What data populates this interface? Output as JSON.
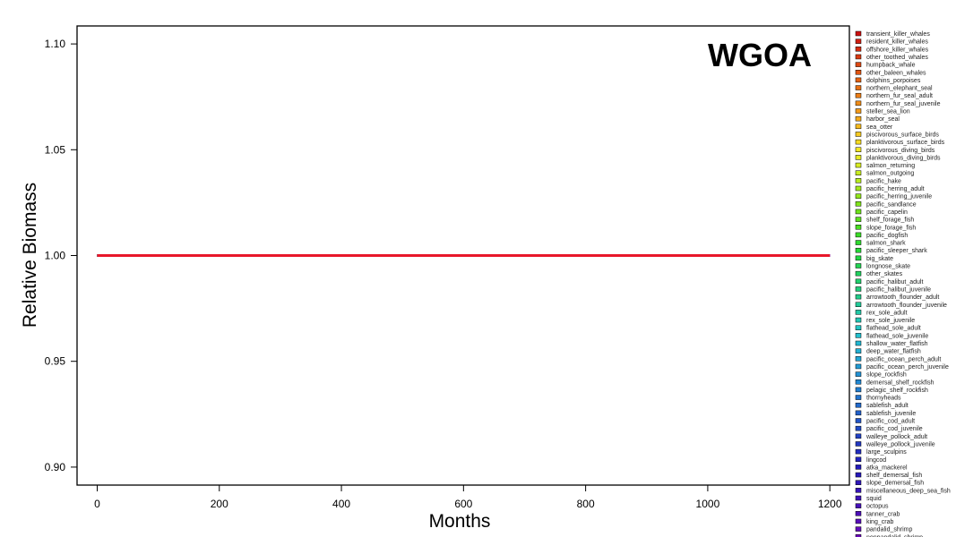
{
  "chart_data": {
    "type": "line",
    "title": "WGOA",
    "xlabel": "Months",
    "ylabel": "Relative Biomass",
    "xlim": [
      -33,
      1232
    ],
    "ylim": [
      0.8915,
      1.1085
    ],
    "xticks": [
      0,
      200,
      400,
      600,
      800,
      1000,
      1200
    ],
    "yticks": [
      0.9,
      0.95,
      1.0,
      1.05,
      1.1
    ],
    "ytick_labels": [
      "0.90",
      "0.95",
      "1.00",
      "1.05",
      "1.10"
    ],
    "grid": false,
    "legend_position": "right",
    "x": [
      0,
      1200
    ],
    "series": [
      {
        "name": "transient_killer_whales",
        "color": "#cc1111",
        "values": [
          1.0,
          1.0
        ]
      },
      {
        "name": "resident_killer_whales",
        "color": "#d01f12",
        "values": [
          1.0,
          1.0
        ]
      },
      {
        "name": "offshore_killer_whales",
        "color": "#d42c12",
        "values": [
          1.0,
          1.0
        ]
      },
      {
        "name": "other_toothed_whales",
        "color": "#d83a12",
        "values": [
          1.0,
          1.0
        ]
      },
      {
        "name": "humpback_whale",
        "color": "#dc4812",
        "values": [
          1.0,
          1.0
        ]
      },
      {
        "name": "other_baleen_whales",
        "color": "#e05512",
        "values": [
          1.0,
          1.0
        ]
      },
      {
        "name": "dolphins_porpoises",
        "color": "#e46212",
        "values": [
          1.0,
          1.0
        ]
      },
      {
        "name": "northern_elephant_seal",
        "color": "#e87014",
        "values": [
          1.0,
          1.0
        ]
      },
      {
        "name": "northern_fur_seal_adult",
        "color": "#ec7e16",
        "values": [
          1.0,
          1.0
        ]
      },
      {
        "name": "northern_fur_seal_juvenile",
        "color": "#f08c18",
        "values": [
          1.0,
          1.0
        ]
      },
      {
        "name": "steller_sea_lion",
        "color": "#f39a1a",
        "values": [
          1.0,
          1.0
        ]
      },
      {
        "name": "harbor_seal",
        "color": "#f4aa1c",
        "values": [
          1.0,
          1.0
        ]
      },
      {
        "name": "sea_otter",
        "color": "#f5ba1e",
        "values": [
          1.0,
          1.0
        ]
      },
      {
        "name": "piscivorous_surface_birds",
        "color": "#f6ca20",
        "values": [
          1.0,
          1.0
        ]
      },
      {
        "name": "planktivorous_surface_birds",
        "color": "#f6da22",
        "values": [
          1.0,
          1.0
        ]
      },
      {
        "name": "piscivorous_diving_birds",
        "color": "#f2e624",
        "values": [
          1.0,
          1.0
        ]
      },
      {
        "name": "planktivorous_diving_birds",
        "color": "#e6ea24",
        "values": [
          1.0,
          1.0
        ]
      },
      {
        "name": "salmon_returning",
        "color": "#d8ec22",
        "values": [
          1.0,
          1.0
        ]
      },
      {
        "name": "salmon_outgoing",
        "color": "#c8ec20",
        "values": [
          1.0,
          1.0
        ]
      },
      {
        "name": "pacific_hake",
        "color": "#b6ea1e",
        "values": [
          1.0,
          1.0
        ]
      },
      {
        "name": "pacific_herring_adult",
        "color": "#a4e81c",
        "values": [
          1.0,
          1.0
        ]
      },
      {
        "name": "pacific_herring_juvenile",
        "color": "#92e61c",
        "values": [
          1.0,
          1.0
        ]
      },
      {
        "name": "pacific_sandlance",
        "color": "#80e41c",
        "values": [
          1.0,
          1.0
        ]
      },
      {
        "name": "pacific_capelin",
        "color": "#6ee21e",
        "values": [
          1.0,
          1.0
        ]
      },
      {
        "name": "shelf_forage_fish",
        "color": "#5ce020",
        "values": [
          1.0,
          1.0
        ]
      },
      {
        "name": "slope_forage_fish",
        "color": "#4ade22",
        "values": [
          1.0,
          1.0
        ]
      },
      {
        "name": "pacific_dogfish",
        "color": "#3adc26",
        "values": [
          1.0,
          1.0
        ]
      },
      {
        "name": "salmon_shark",
        "color": "#2eda2e",
        "values": [
          1.0,
          1.0
        ]
      },
      {
        "name": "pacific_sleeper_shark",
        "color": "#26d838",
        "values": [
          1.0,
          1.0
        ]
      },
      {
        "name": "big_skate",
        "color": "#22d644",
        "values": [
          1.0,
          1.0
        ]
      },
      {
        "name": "longnose_skate",
        "color": "#22d452",
        "values": [
          1.0,
          1.0
        ]
      },
      {
        "name": "other_skates",
        "color": "#22d260",
        "values": [
          1.0,
          1.0
        ]
      },
      {
        "name": "pacific_halibut_adult",
        "color": "#22d06e",
        "values": [
          1.0,
          1.0
        ]
      },
      {
        "name": "pacific_halibut_juvenile",
        "color": "#22ce7c",
        "values": [
          1.0,
          1.0
        ]
      },
      {
        "name": "arrowtooth_flounder_adult",
        "color": "#22cc8a",
        "values": [
          1.0,
          1.0
        ]
      },
      {
        "name": "arrowtooth_flounder_juvenile",
        "color": "#22ca98",
        "values": [
          1.0,
          1.0
        ]
      },
      {
        "name": "rex_sole_adult",
        "color": "#22c8a6",
        "values": [
          1.0,
          1.0
        ]
      },
      {
        "name": "rex_sole_juvenile",
        "color": "#22c6b4",
        "values": [
          1.0,
          1.0
        ]
      },
      {
        "name": "flathead_sole_adult",
        "color": "#22c4c2",
        "values": [
          1.0,
          1.0
        ]
      },
      {
        "name": "flathead_sole_juvenile",
        "color": "#22c0ce",
        "values": [
          1.0,
          1.0
        ]
      },
      {
        "name": "shallow_water_flatfish",
        "color": "#22b8d2",
        "values": [
          1.0,
          1.0
        ]
      },
      {
        "name": "deep_water_flatfish",
        "color": "#22b0d4",
        "values": [
          1.0,
          1.0
        ]
      },
      {
        "name": "pacific_ocean_perch_adult",
        "color": "#22a6d4",
        "values": [
          1.0,
          1.0
        ]
      },
      {
        "name": "pacific_ocean_perch_juvenile",
        "color": "#229cd4",
        "values": [
          1.0,
          1.0
        ]
      },
      {
        "name": "slope_rockfish",
        "color": "#2292d4",
        "values": [
          1.0,
          1.0
        ]
      },
      {
        "name": "demersal_shelf_rockfish",
        "color": "#2288d2",
        "values": [
          1.0,
          1.0
        ]
      },
      {
        "name": "pelagic_shelf_rockfish",
        "color": "#227ed0",
        "values": [
          1.0,
          1.0
        ]
      },
      {
        "name": "thornyheads",
        "color": "#2274ce",
        "values": [
          1.0,
          1.0
        ]
      },
      {
        "name": "sablefish_adult",
        "color": "#226acc",
        "values": [
          1.0,
          1.0
        ]
      },
      {
        "name": "sablefish_juvenile",
        "color": "#2260ca",
        "values": [
          1.0,
          1.0
        ]
      },
      {
        "name": "pacific_cod_adult",
        "color": "#2256c8",
        "values": [
          1.0,
          1.0
        ]
      },
      {
        "name": "pacific_cod_juvenile",
        "color": "#224cc6",
        "values": [
          1.0,
          1.0
        ]
      },
      {
        "name": "walleye_pollock_adult",
        "color": "#2242c4",
        "values": [
          1.0,
          1.0
        ]
      },
      {
        "name": "walleye_pollock_juvenile",
        "color": "#2238c2",
        "values": [
          1.0,
          1.0
        ]
      },
      {
        "name": "large_sculpins",
        "color": "#222ec0",
        "values": [
          1.0,
          1.0
        ]
      },
      {
        "name": "lingcod",
        "color": "#2224be",
        "values": [
          1.0,
          1.0
        ]
      },
      {
        "name": "atka_mackerel",
        "color": "#221cbc",
        "values": [
          1.0,
          1.0
        ]
      },
      {
        "name": "shelf_demersal_fish",
        "color": "#2618ba",
        "values": [
          1.0,
          1.0
        ]
      },
      {
        "name": "slope_demersal_fish",
        "color": "#2e16b8",
        "values": [
          1.0,
          1.0
        ]
      },
      {
        "name": "miscellaneous_deep_sea_fish",
        "color": "#3614b8",
        "values": [
          1.0,
          1.0
        ]
      },
      {
        "name": "squid",
        "color": "#3e12b8",
        "values": [
          1.0,
          1.0
        ]
      },
      {
        "name": "octopus",
        "color": "#4610b8",
        "values": [
          1.0,
          1.0
        ]
      },
      {
        "name": "tanner_crab",
        "color": "#4e0eb8",
        "values": [
          1.0,
          1.0
        ]
      },
      {
        "name": "king_crab",
        "color": "#580eba",
        "values": [
          1.0,
          1.0
        ]
      },
      {
        "name": "pandalid_shrimp",
        "color": "#620eba",
        "values": [
          1.0,
          1.0
        ]
      },
      {
        "name": "nonpandalid_shrimp",
        "color": "#6c0eba",
        "values": [
          1.0,
          1.0
        ]
      }
    ],
    "visible_line_color": "#e8172a"
  }
}
